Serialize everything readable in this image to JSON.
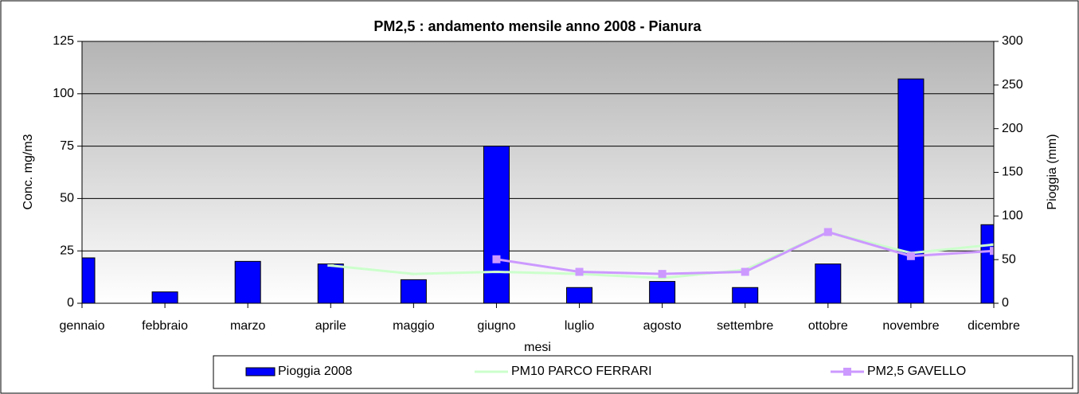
{
  "chart_data": {
    "type": "bar",
    "title": "PM2,5 : andamento mensile anno 2008 - Pianura",
    "xlabel": "mesi",
    "ylabel": "Conc. mg/m3",
    "y2label": "Pioggia (mm)",
    "categories": [
      "gennaio",
      "febbraio",
      "marzo",
      "aprile",
      "maggio",
      "giugno",
      "luglio",
      "agosto",
      "settembre",
      "ottobre",
      "novembre",
      "dicembre"
    ],
    "series": [
      {
        "name": "Pioggia 2008",
        "type": "bar",
        "axis": "y2",
        "color": "#0000ff",
        "values": [
          52,
          13,
          48,
          45,
          27,
          180,
          18,
          25,
          18,
          45,
          257,
          90
        ]
      },
      {
        "name": "PM10 PARCO FERRARI",
        "type": "line",
        "color": "#ccffcc",
        "values": [
          null,
          null,
          null,
          18,
          14,
          15,
          14,
          12,
          16,
          34,
          24,
          28
        ]
      },
      {
        "name": "PM2,5 GAVELLO",
        "type": "line",
        "color": "#cc99ff",
        "values": [
          null,
          null,
          null,
          null,
          null,
          21,
          15,
          14,
          15,
          34,
          22.5,
          25
        ]
      }
    ],
    "ylim": [
      0,
      125
    ],
    "yticks": [
      0,
      25,
      50,
      75,
      100,
      125
    ],
    "y2lim": [
      0,
      300
    ],
    "y2ticks": [
      0,
      50,
      100,
      150,
      200,
      250,
      300
    ],
    "grid": true,
    "legend": "bottom"
  }
}
